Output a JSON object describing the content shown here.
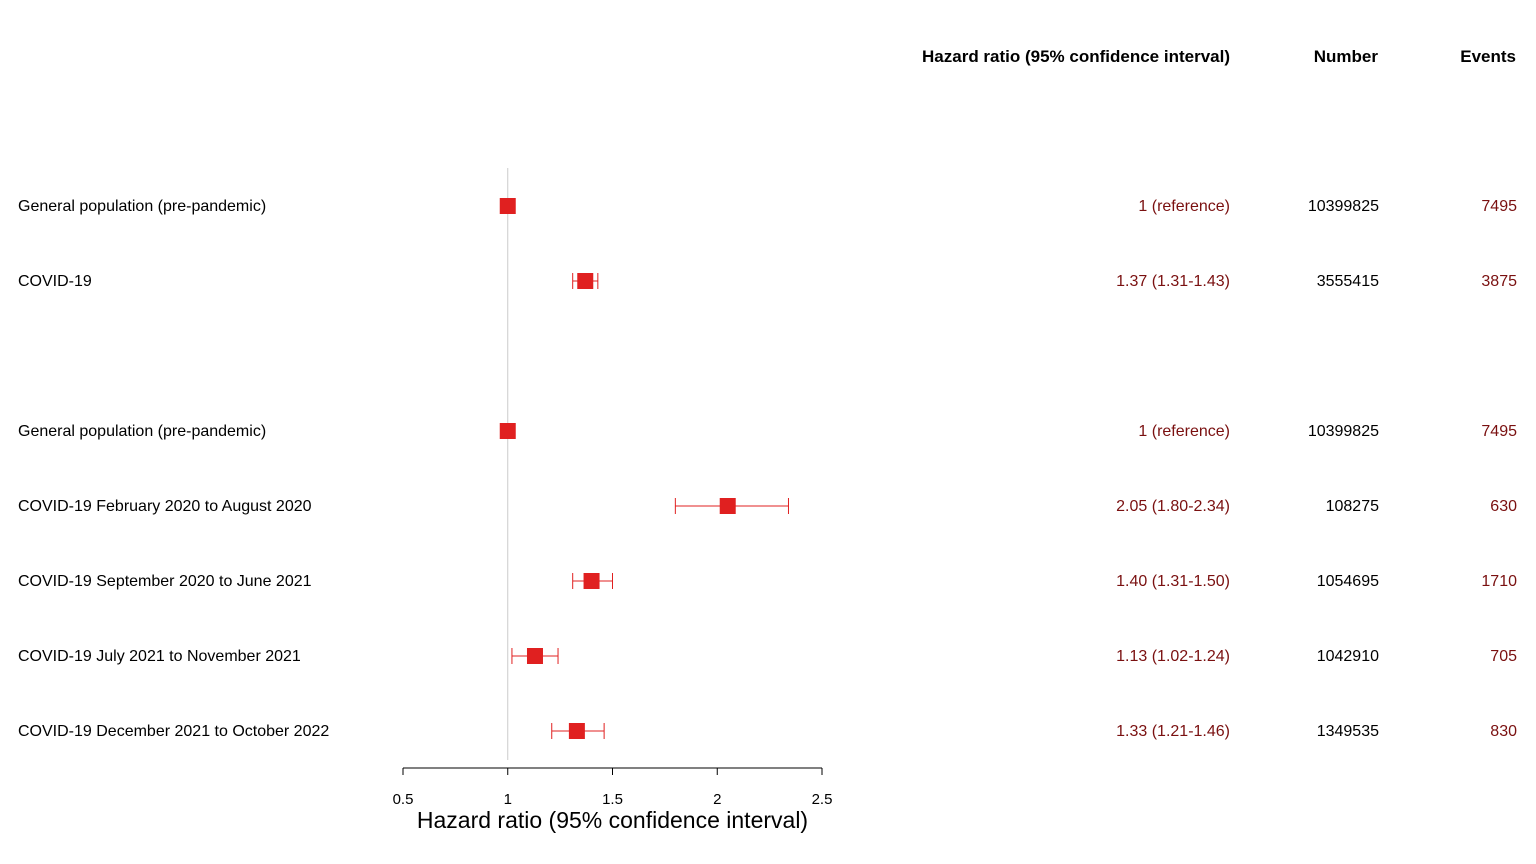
{
  "headers": {
    "hazard_ratio": "Hazard ratio (95% confidence interval)",
    "number": "Number",
    "events": "Events"
  },
  "colors": {
    "point": "#e02020",
    "text_accent": "#7a1010",
    "reference_line": "#cccccc"
  },
  "chart_data": {
    "type": "forest",
    "xlabel": "Hazard ratio (95% confidence interval)",
    "xlim": [
      0.5,
      2.5
    ],
    "xticks": [
      0.5,
      1,
      1.5,
      2,
      2.5
    ],
    "xtick_labels": [
      "0.5",
      "1",
      "1.5",
      "2",
      "2.5"
    ],
    "reference_value": 1,
    "rows": [
      {
        "label": "General population (pre-pandemic)",
        "hr": 1,
        "lower": null,
        "upper": null,
        "hr_text": "1 (reference)",
        "number": "10399825",
        "events": "7495"
      },
      {
        "label": "COVID-19",
        "hr": 1.37,
        "lower": 1.31,
        "upper": 1.43,
        "hr_text": "1.37 (1.31-1.43)",
        "number": "3555415",
        "events": "3875"
      },
      {
        "label": "General population (pre-pandemic)",
        "hr": 1,
        "lower": null,
        "upper": null,
        "hr_text": "1 (reference)",
        "number": "10399825",
        "events": "7495"
      },
      {
        "label": "COVID-19 February 2020 to August 2020",
        "hr": 2.05,
        "lower": 1.8,
        "upper": 2.34,
        "hr_text": "2.05 (1.80-2.34)",
        "number": "108275",
        "events": "630"
      },
      {
        "label": "COVID-19 September 2020 to June 2021",
        "hr": 1.4,
        "lower": 1.31,
        "upper": 1.5,
        "hr_text": "1.40 (1.31-1.50)",
        "number": "1054695",
        "events": "1710"
      },
      {
        "label": "COVID-19 July 2021 to November 2021",
        "hr": 1.13,
        "lower": 1.02,
        "upper": 1.24,
        "hr_text": "1.13 (1.02-1.24)",
        "number": "1042910",
        "events": "705"
      },
      {
        "label": "COVID-19 December 2021 to October 2022",
        "hr": 1.33,
        "lower": 1.21,
        "upper": 1.46,
        "hr_text": "1.33 (1.21-1.46)",
        "number": "1349535",
        "events": "830"
      }
    ]
  }
}
